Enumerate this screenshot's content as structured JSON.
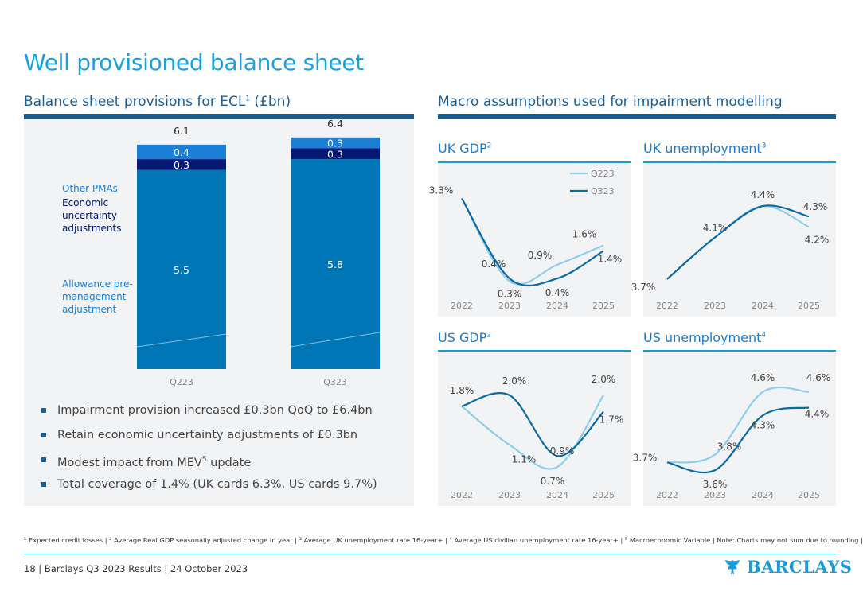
{
  "page": {
    "title": "Well provisioned balance sheet"
  },
  "left": {
    "heading": {
      "text": "Balance sheet provisions for ECL",
      "sup": "1",
      "tail": " (£bn)"
    },
    "segment_labels": [
      "Other PMAs",
      "Economic uncertainty adjustments",
      "Allowance pre-management adjustment"
    ],
    "bullets": [
      {
        "text": "Impairment provision increased £0.3bn QoQ to £6.4bn"
      },
      {
        "text": "Retain economic uncertainty adjustments of £0.3bn"
      },
      {
        "pre": "Modest impact from MEV",
        "sup": "5",
        "post": " update"
      },
      {
        "text": "Total coverage of 1.4% (UK cards 6.3%, US cards 9.7%)"
      }
    ]
  },
  "right": {
    "heading": "Macro assumptions used for impairment modelling",
    "panels": [
      {
        "title": "UK GDP",
        "sup": "2"
      },
      {
        "title": "UK unemployment",
        "sup": "3"
      },
      {
        "title": "US GDP",
        "sup": "2"
      },
      {
        "title": "US unemployment",
        "sup": "4"
      }
    ]
  },
  "colors": {
    "base": "#0076b6",
    "eua": "#041874",
    "pma": "#1b7fd6",
    "light": "#8fcdef",
    "dark": "#0b6aa2",
    "axis": "#888888"
  },
  "chart_data": [
    {
      "id": "ecl",
      "type": "bar",
      "stacked": true,
      "title": "Balance sheet provisions for ECL (£bn)",
      "categories": [
        "Q223",
        "Q323"
      ],
      "series": [
        {
          "name": "Allowance pre-management adjustment",
          "values": [
            5.5,
            5.8
          ],
          "labels": [
            "5.5",
            "5.8"
          ],
          "color": "#0076b6"
        },
        {
          "name": "Economic uncertainty adjustments",
          "values": [
            0.3,
            0.3
          ],
          "labels": [
            "0.3",
            "0.3"
          ],
          "color": "#041874"
        },
        {
          "name": "Other PMAs",
          "values": [
            0.4,
            0.3
          ],
          "labels": [
            "0.4",
            "0.3"
          ],
          "color": "#1b7fd6"
        }
      ],
      "totals": [
        "6.1",
        "6.4"
      ],
      "ylim": [
        0,
        6.6
      ]
    },
    {
      "id": "ukgdp",
      "type": "line",
      "title": "UK GDP",
      "x": [
        "2022",
        "2023",
        "2024",
        "2025"
      ],
      "ylim": [
        0,
        3.4
      ],
      "legend": "top-right",
      "series": [
        {
          "name": "Q223",
          "values": [
            3.3,
            0.3,
            0.9,
            1.6
          ],
          "labels": [
            "",
            "0.3%",
            "0.9%",
            "1.6%"
          ],
          "style": "light"
        },
        {
          "name": "Q323",
          "values": [
            3.3,
            0.4,
            0.4,
            1.4
          ],
          "labels": [
            "3.3%",
            "0.4%",
            "0.4%",
            "1.4%"
          ],
          "style": "dark"
        }
      ]
    },
    {
      "id": "ukun",
      "type": "line",
      "title": "UK unemployment",
      "x": [
        "2022",
        "2023",
        "2024",
        "2025"
      ],
      "ylim": [
        3.6,
        4.5
      ],
      "series": [
        {
          "name": "Q223",
          "values": [
            3.7,
            4.1,
            4.4,
            4.2
          ],
          "labels": [
            "",
            "",
            "",
            "4.2%"
          ],
          "style": "light"
        },
        {
          "name": "Q323",
          "values": [
            3.7,
            4.1,
            4.4,
            4.3
          ],
          "labels": [
            "3.7%",
            "4.1%",
            "4.4%",
            "4.3%"
          ],
          "style": "dark"
        }
      ]
    },
    {
      "id": "usgdp",
      "type": "line",
      "title": "US GDP",
      "x": [
        "2022",
        "2023",
        "2024",
        "2025"
      ],
      "ylim": [
        0.5,
        2.2
      ],
      "series": [
        {
          "name": "Q223",
          "values": [
            1.8,
            1.1,
            0.7,
            2.0
          ],
          "labels": [
            "1.8%",
            "1.1%",
            "0.7%",
            "2.0%"
          ],
          "style": "light"
        },
        {
          "name": "Q323",
          "values": [
            1.8,
            2.0,
            0.9,
            1.7
          ],
          "labels": [
            "",
            "2.0%",
            "0.9%",
            "1.7%"
          ],
          "style": "dark"
        }
      ]
    },
    {
      "id": "usun",
      "type": "line",
      "title": "US unemployment",
      "x": [
        "2022",
        "2023",
        "2024",
        "2025"
      ],
      "ylim": [
        3.5,
        4.7
      ],
      "series": [
        {
          "name": "Q223",
          "values": [
            3.7,
            3.8,
            4.6,
            4.6
          ],
          "labels": [
            "3.7%",
            "3.8%",
            "4.6%",
            "4.6%"
          ],
          "style": "light"
        },
        {
          "name": "Q323",
          "values": [
            3.7,
            3.6,
            4.3,
            4.4
          ],
          "labels": [
            "",
            "3.6%",
            "4.3%",
            "4.4%"
          ],
          "style": "dark"
        }
      ]
    }
  ],
  "footnote": "¹ Expected credit losses | ² Average Real GDP seasonally adjusted change in year | ³ Average UK unemployment rate 16-year+ | ⁴ Average US civilian unemployment rate 16-year+ | ⁵ Macroeconomic Variable | Note: Charts may not sum due to rounding |",
  "footer": {
    "page": "18",
    "deck": "Barclays Q3 2023 Results",
    "date": "24 October 2023",
    "logo_text": "BARCLAYS"
  }
}
